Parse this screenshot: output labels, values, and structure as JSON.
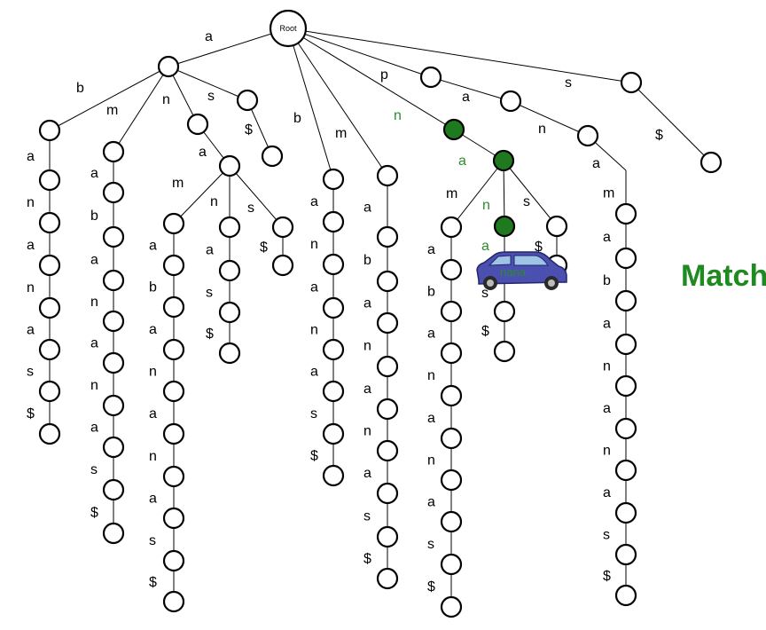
{
  "title_text": "Match",
  "root_label": "Root",
  "car_label": "nana",
  "colors": {
    "highlight_node": "#1f7a1f",
    "highlight_text": "#2e8b2e",
    "car_body": "#4a4fb0",
    "match_text": "#1f8a1f"
  },
  "edge_labels": {
    "top": [
      "a",
      "p",
      "s"
    ],
    "a_children": [
      "b",
      "m",
      "n",
      "s"
    ],
    "root_side": [
      "b",
      "m",
      "n"
    ],
    "p_path": [
      "a",
      "n"
    ],
    "s_child": "$",
    "a_s_child": "$",
    "chain_abanana": [
      "a",
      "n",
      "a",
      "n",
      "a",
      "s",
      "$"
    ],
    "chain_amanana": [
      "a",
      "b",
      "a",
      "n",
      "a",
      "n",
      "a",
      "s",
      "$"
    ],
    "ana_children": [
      "m",
      "n",
      "s"
    ],
    "chain_ana_m": [
      "a",
      "b",
      "a",
      "n",
      "a",
      "n",
      "a",
      "s",
      "$"
    ],
    "chain_ana_n": [
      "a",
      "s",
      "$"
    ],
    "chain_ana_s": "$",
    "chain_b": [
      "a",
      "n",
      "a",
      "n",
      "a",
      "s",
      "$"
    ],
    "chain_m": [
      "a",
      "b",
      "a",
      "n",
      "a",
      "n",
      "a",
      "s",
      "$"
    ],
    "na_children": [
      "m",
      "n",
      "s"
    ],
    "chain_na_m": [
      "a",
      "b",
      "a",
      "n",
      "a",
      "n",
      "a",
      "s",
      "$"
    ],
    "chain_na_n": [
      "a",
      "s",
      "$"
    ],
    "chain_na_s": "$",
    "chain_pan": [
      "a",
      "m",
      "a",
      "b",
      "a",
      "n",
      "a",
      "n",
      "a",
      "s",
      "$"
    ]
  }
}
